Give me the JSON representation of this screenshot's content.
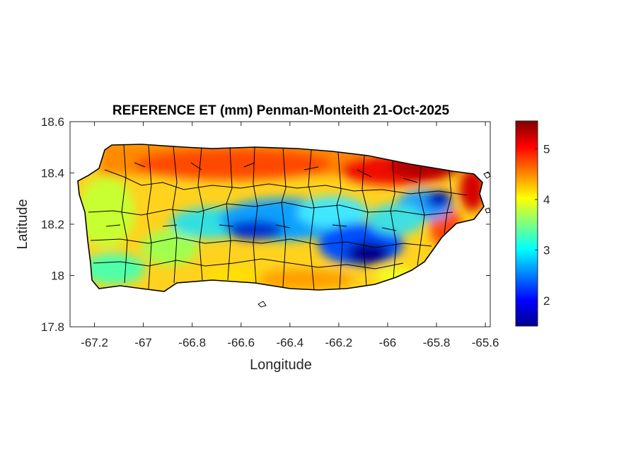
{
  "title": "REFERENCE ET (mm) Penman-Monteith 21-Oct-2025",
  "map": {
    "xlabel": "Longitude",
    "ylabel": "Latitude",
    "xlim": [
      -67.3,
      -65.58
    ],
    "ylim": [
      17.8,
      18.6
    ],
    "xticks": [
      {
        "value": -67.2,
        "label": "-67.2"
      },
      {
        "value": -67.0,
        "label": "-67"
      },
      {
        "value": -66.8,
        "label": "-66.8"
      },
      {
        "value": -66.6,
        "label": "-66.6"
      },
      {
        "value": -66.4,
        "label": "-66.4"
      },
      {
        "value": -66.2,
        "label": "-66.2"
      },
      {
        "value": -66.0,
        "label": "-66"
      },
      {
        "value": -65.8,
        "label": "-65.8"
      },
      {
        "value": -65.6,
        "label": "-65.6"
      }
    ],
    "yticks": [
      {
        "value": 17.8,
        "label": "17.8"
      },
      {
        "value": 18.0,
        "label": "18"
      },
      {
        "value": 18.2,
        "label": "18.2"
      },
      {
        "value": 18.4,
        "label": "18.4"
      },
      {
        "value": 18.6,
        "label": "18.6"
      }
    ]
  },
  "colorbar": {
    "min": 1.5,
    "max": 5.55,
    "colormap": "jet",
    "ticks": [
      {
        "value": 2,
        "label": "2"
      },
      {
        "value": 3,
        "label": "3"
      },
      {
        "value": 4,
        "label": "4"
      },
      {
        "value": 5,
        "label": "5"
      }
    ]
  },
  "colors": {
    "low": "#00008f",
    "mid": "#ffff00",
    "high": "#800000",
    "outline": "#000000"
  }
}
